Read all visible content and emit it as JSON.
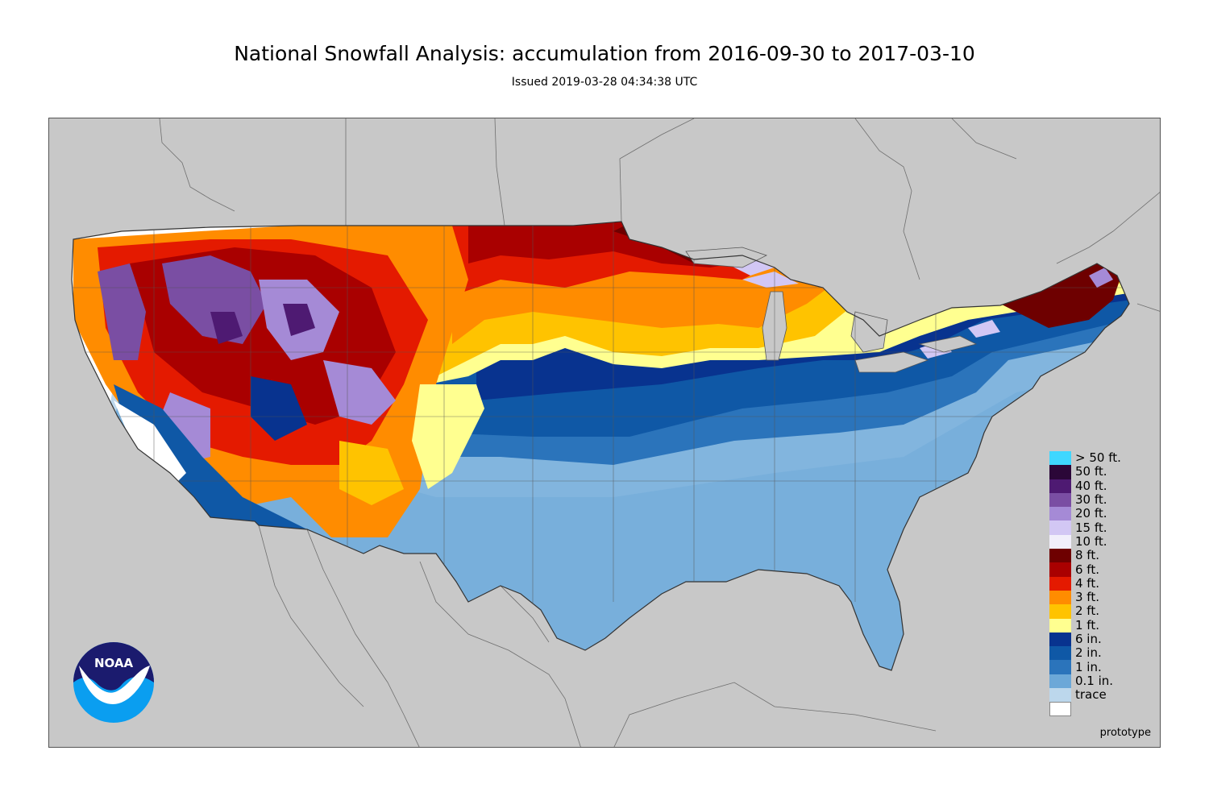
{
  "header": {
    "title": "National Snowfall Analysis: accumulation from 2016-09-30 to 2017-03-10",
    "subtitle": "Issued 2019-03-28 04:34:38 UTC"
  },
  "map": {
    "background_color": "#c8c8c8",
    "land_color": "#c8c8c8",
    "water_color": "#c8c8c8"
  },
  "legend": {
    "items": [
      {
        "label": "> 50 ft.",
        "color": "#3fd7ff"
      },
      {
        "label": "50 ft.",
        "color": "#2b0738"
      },
      {
        "label": "40 ft.",
        "color": "#4e1a72"
      },
      {
        "label": "30 ft.",
        "color": "#7a4ea3"
      },
      {
        "label": "20 ft.",
        "color": "#a58ad6"
      },
      {
        "label": "15 ft.",
        "color": "#d2c7f4"
      },
      {
        "label": "10 ft.",
        "color": "#f1effb"
      },
      {
        "label": "8 ft.",
        "color": "#6e0000"
      },
      {
        "label": "6 ft.",
        "color": "#a90000"
      },
      {
        "label": "4 ft.",
        "color": "#e41a00"
      },
      {
        "label": "3 ft.",
        "color": "#ff8c00"
      },
      {
        "label": "2 ft.",
        "color": "#ffc300"
      },
      {
        "label": "1 ft.",
        "color": "#ffff90"
      },
      {
        "label": "6 in.",
        "color": "#08338f"
      },
      {
        "label": "2 in.",
        "color": "#0f58a6"
      },
      {
        "label": "1 in.",
        "color": "#2b74bb"
      },
      {
        "label": "0.1 in.",
        "color": "#6ca8d8"
      },
      {
        "label": "trace",
        "color": "#bcd7ec"
      },
      {
        "label": "",
        "color": "#ffffff"
      }
    ]
  },
  "logo": {
    "text": "NOAA",
    "icon": "noaa-logo-icon"
  },
  "footer": {
    "note": "prototype"
  }
}
